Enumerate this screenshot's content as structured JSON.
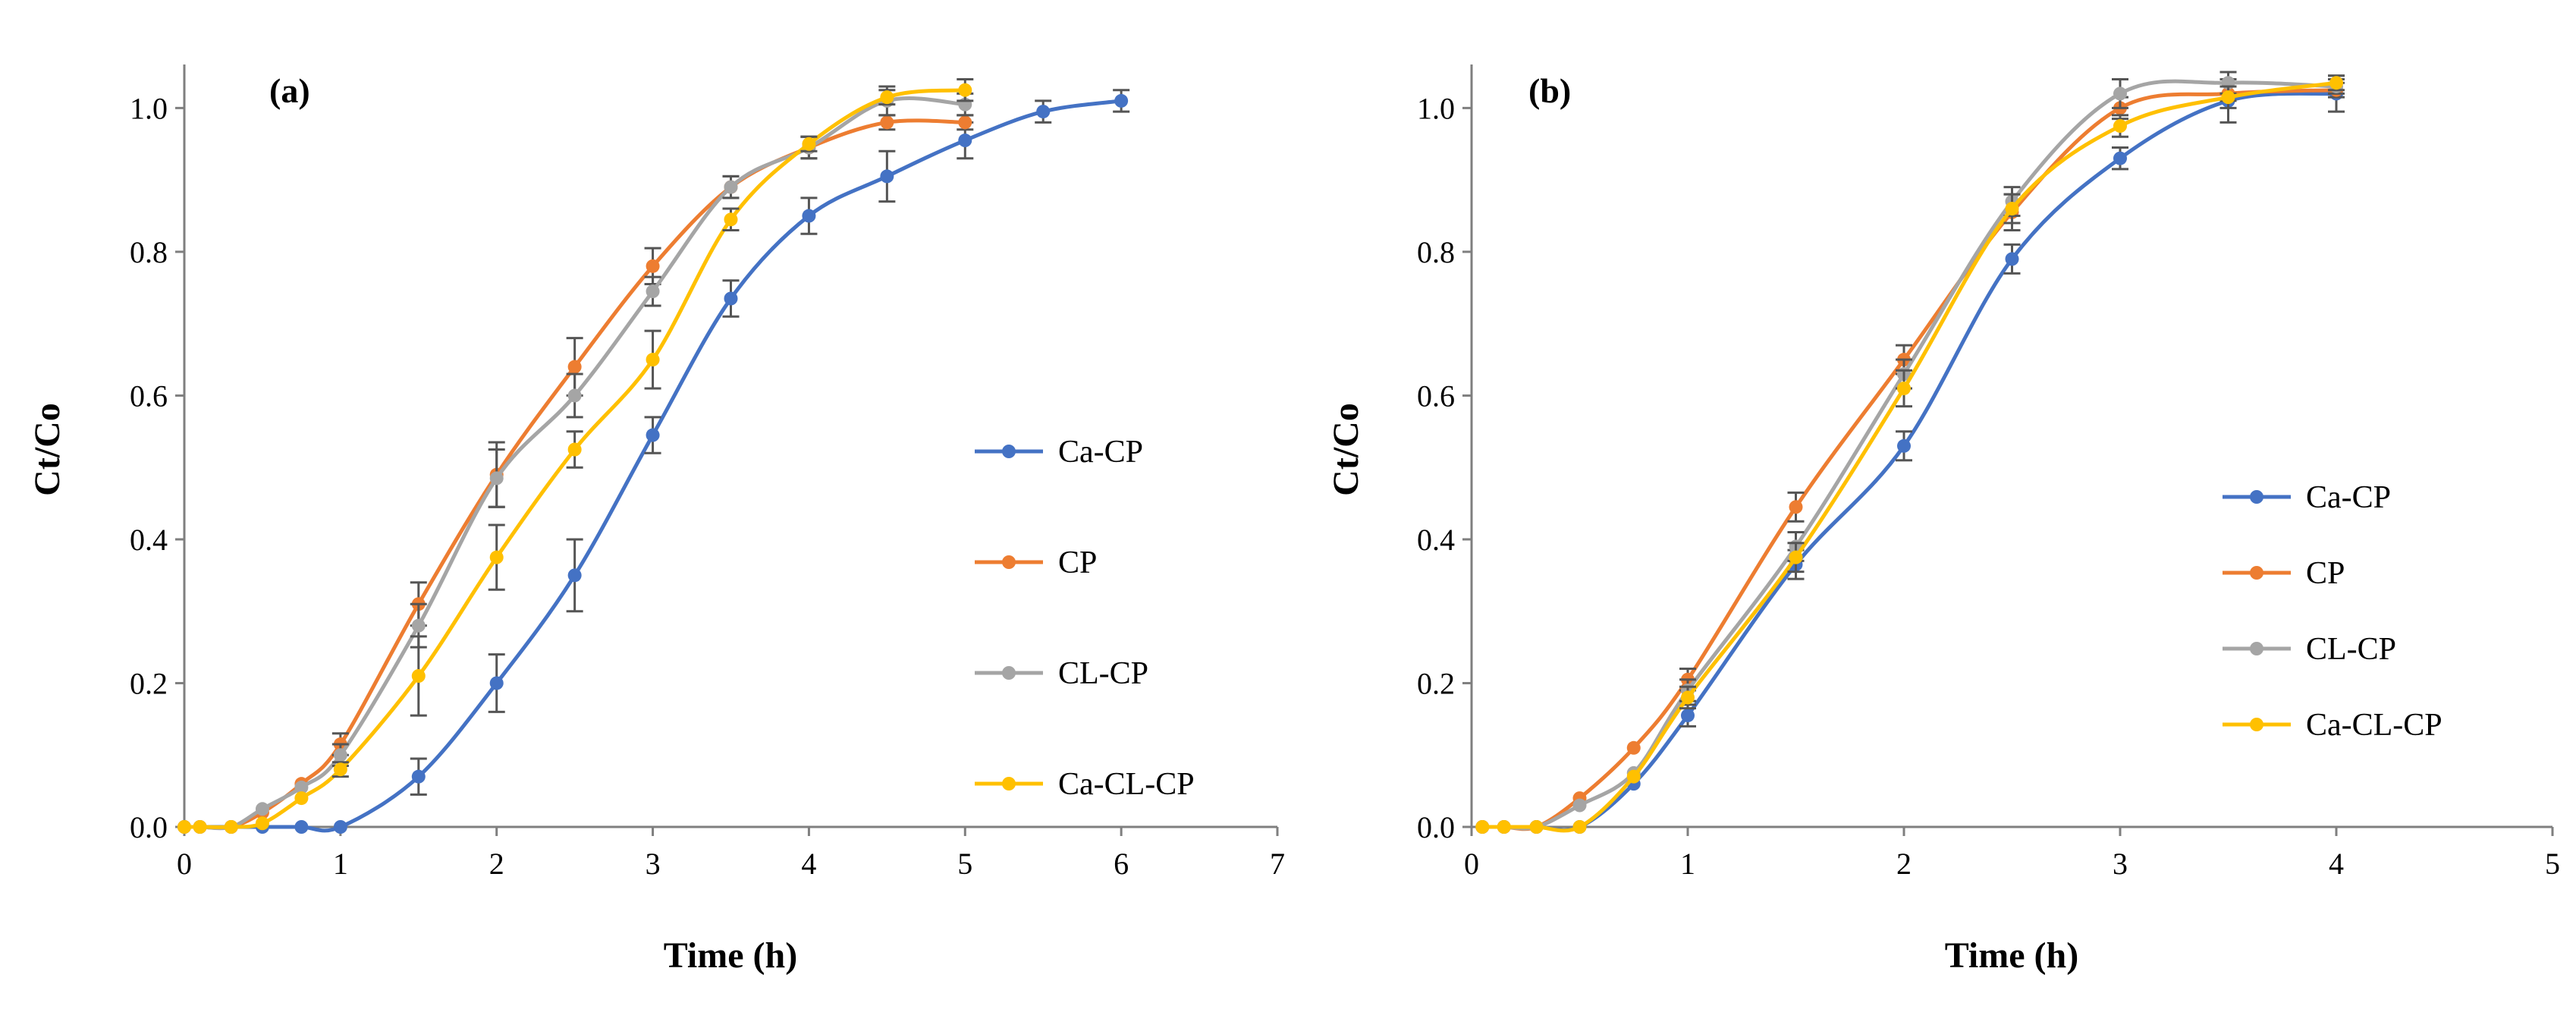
{
  "chart_data": [
    {
      "type": "line",
      "panel_label": "(a)",
      "xlabel": "Time (h)",
      "ylabel": "Ct/Co",
      "xlim": [
        0,
        7
      ],
      "ylim": [
        0,
        1.0
      ],
      "xticks": [
        "0",
        "1",
        "2",
        "3",
        "4",
        "5",
        "6",
        "7"
      ],
      "yticks": [
        "0.0",
        "0.2",
        "0.4",
        "0.6",
        "0.8",
        "1.0"
      ],
      "grid": false,
      "legend_position": "right",
      "series": [
        {
          "name": "Ca-CP",
          "color": "#4472C4",
          "x": [
            0,
            0.1,
            0.3,
            0.5,
            0.75,
            1,
            1.5,
            2,
            2.5,
            3,
            3.5,
            4,
            4.5,
            5,
            5.5,
            6
          ],
          "y": [
            0,
            0,
            0,
            0,
            0,
            0,
            0.07,
            0.2,
            0.35,
            0.545,
            0.735,
            0.85,
            0.905,
            0.955,
            0.995,
            1.01
          ],
          "err": [
            0,
            0,
            0,
            0,
            0,
            0,
            0.025,
            0.04,
            0.05,
            0.025,
            0.025,
            0.025,
            0.035,
            0.025,
            0.015,
            0.015
          ]
        },
        {
          "name": "CP",
          "color": "#ED7D31",
          "x": [
            0,
            0.1,
            0.3,
            0.5,
            0.75,
            1,
            1.5,
            2,
            2.5,
            3,
            3.5,
            4,
            4.5,
            5
          ],
          "y": [
            0,
            0,
            0,
            0.02,
            0.06,
            0.115,
            0.31,
            0.49,
            0.64,
            0.78,
            0.89,
            0.945,
            0.98,
            0.98
          ],
          "err": [
            0,
            0,
            0,
            0,
            0,
            0.015,
            0.03,
            0.045,
            0.04,
            0.025,
            0.015,
            0.015,
            0.01,
            0.01
          ]
        },
        {
          "name": "CL-CP",
          "color": "#A5A5A5",
          "x": [
            0,
            0.1,
            0.3,
            0.5,
            0.75,
            1,
            1.5,
            2,
            2.5,
            3,
            3.5,
            4,
            4.5,
            5
          ],
          "y": [
            0,
            0,
            0,
            0.025,
            0.055,
            0.1,
            0.28,
            0.485,
            0.6,
            0.745,
            0.89,
            0.945,
            1.01,
            1.005
          ],
          "err": [
            0,
            0,
            0,
            0,
            0,
            0.015,
            0.03,
            0.04,
            0.03,
            0.02,
            0.015,
            0.015,
            0.02,
            0.015
          ]
        },
        {
          "name": "Ca-CL-CP",
          "color": "#FFC000",
          "x": [
            0,
            0.1,
            0.3,
            0.5,
            0.75,
            1,
            1.5,
            2,
            2.5,
            3,
            3.5,
            4,
            4.5,
            5
          ],
          "y": [
            0,
            0,
            0,
            0.005,
            0.04,
            0.08,
            0.21,
            0.375,
            0.525,
            0.65,
            0.845,
            0.95,
            1.015,
            1.025
          ],
          "err": [
            0,
            0,
            0,
            0,
            0,
            0.01,
            0.055,
            0.045,
            0.025,
            0.04,
            0.015,
            0.01,
            0.01,
            0.015
          ]
        }
      ]
    },
    {
      "type": "line",
      "panel_label": "(b)",
      "xlabel": "Time (h)",
      "ylabel": "Ct/Co",
      "xlim": [
        0,
        5
      ],
      "ylim": [
        0,
        1.0
      ],
      "xticks": [
        "0",
        "1",
        "2",
        "3",
        "4",
        "5"
      ],
      "yticks": [
        "0.0",
        "0.2",
        "0.4",
        "0.6",
        "0.8",
        "1.0"
      ],
      "grid": false,
      "legend_position": "right",
      "series": [
        {
          "name": "Ca-CP",
          "color": "#4472C4",
          "x": [
            0.05,
            0.15,
            0.3,
            0.5,
            0.75,
            1,
            1.5,
            2,
            2.5,
            3,
            3.5,
            4
          ],
          "y": [
            0,
            0,
            0,
            0,
            0.06,
            0.155,
            0.365,
            0.53,
            0.79,
            0.93,
            1.01,
            1.02
          ],
          "err": [
            0,
            0,
            0,
            0,
            0,
            0.015,
            0.02,
            0.02,
            0.02,
            0.015,
            0.03,
            0.025
          ]
        },
        {
          "name": "CP",
          "color": "#ED7D31",
          "x": [
            0.05,
            0.15,
            0.3,
            0.5,
            0.75,
            1,
            1.5,
            2,
            2.5,
            3,
            3.5,
            4
          ],
          "y": [
            0,
            0,
            0,
            0.04,
            0.11,
            0.205,
            0.445,
            0.65,
            0.855,
            1.0,
            1.02,
            1.025
          ],
          "err": [
            0,
            0,
            0,
            0,
            0,
            0.015,
            0.02,
            0.02,
            0.025,
            0.015,
            0.01,
            0.01
          ]
        },
        {
          "name": "CL-CP",
          "color": "#A5A5A5",
          "x": [
            0.05,
            0.15,
            0.3,
            0.5,
            0.75,
            1,
            1.5,
            2,
            2.5,
            3,
            3.5,
            4
          ],
          "y": [
            0,
            0,
            0,
            0.03,
            0.075,
            0.19,
            0.39,
            0.63,
            0.87,
            1.02,
            1.035,
            1.03
          ],
          "err": [
            0,
            0,
            0,
            0,
            0,
            0.015,
            0.02,
            0.02,
            0.02,
            0.02,
            0.015,
            0.01
          ]
        },
        {
          "name": "Ca-CL-CP",
          "color": "#FFC000",
          "x": [
            0.05,
            0.15,
            0.3,
            0.5,
            0.75,
            1,
            1.5,
            2,
            2.5,
            3,
            3.5,
            4
          ],
          "y": [
            0,
            0,
            0,
            0,
            0.07,
            0.18,
            0.375,
            0.61,
            0.86,
            0.975,
            1.015,
            1.035
          ],
          "err": [
            0,
            0,
            0,
            0,
            0,
            0.015,
            0.02,
            0.025,
            0.02,
            0.015,
            0.015,
            0.01
          ]
        }
      ]
    }
  ]
}
